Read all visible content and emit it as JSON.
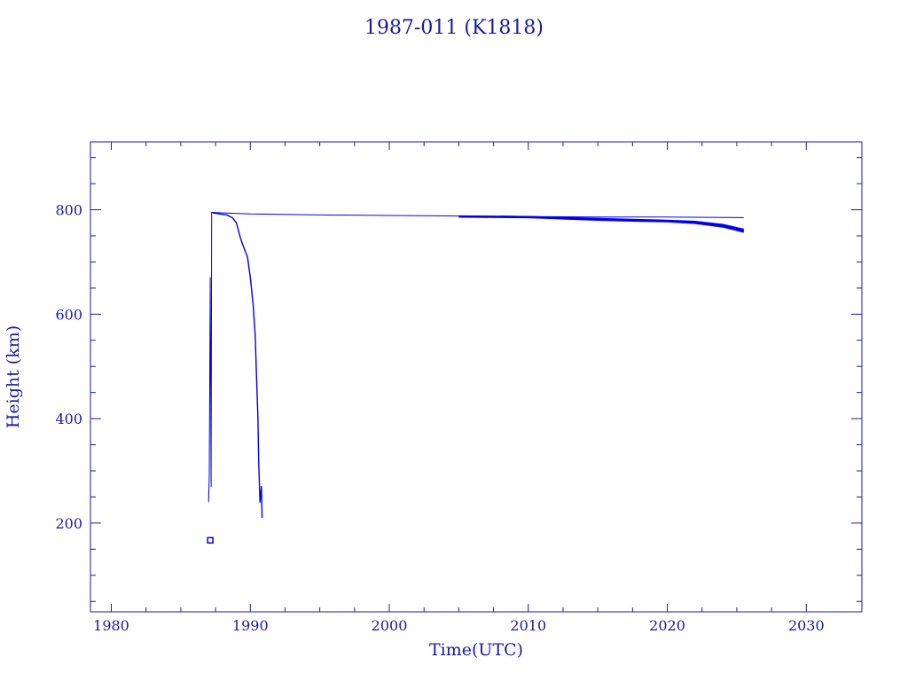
{
  "chart_data": {
    "type": "line",
    "title": "1987-011 (K1818)",
    "xlabel": "Time(UTC)",
    "ylabel": "Height (km)",
    "xlim": [
      1978.5,
      2034
    ],
    "ylim": [
      30,
      930
    ],
    "x_ticks": [
      1980,
      1990,
      2000,
      2010,
      2020,
      2030
    ],
    "y_ticks": [
      200,
      400,
      600,
      800
    ],
    "x_tick_labels": [
      "1980",
      "1990",
      "2000",
      "2010",
      "2020",
      "2030"
    ],
    "y_tick_labels": [
      "200",
      "400",
      "600",
      "800"
    ],
    "grid": false,
    "colors": {
      "axis": "#1a1aa0",
      "line": "#0000ee"
    },
    "series": [
      {
        "x": [
          1987.0,
          1987.05,
          1987.12,
          1987.18,
          1987.22,
          1987.3,
          1988.0,
          1990.0,
          1995.0,
          2000.0,
          2005.0,
          2010.0,
          2015.0,
          2020.0,
          2025.5
        ],
        "y": [
          240,
          290,
          670,
          270,
          795,
          795,
          794,
          792,
          790,
          789,
          788,
          787,
          786,
          786,
          785
        ]
      },
      {
        "x": [
          1987.3,
          1987.8,
          1988.3,
          1988.7,
          1989.0,
          1989.3,
          1989.5,
          1989.8,
          1990.0,
          1990.2,
          1990.35,
          1990.45,
          1990.55,
          1990.6,
          1990.7,
          1990.8,
          1990.85
        ],
        "y": [
          794,
          792,
          790,
          785,
          775,
          745,
          730,
          710,
          670,
          620,
          560,
          480,
          400,
          320,
          240,
          270,
          210
        ]
      },
      {
        "x": [
          2005.0,
          2010.0,
          2012.0,
          2015.0,
          2018.0,
          2020.0,
          2022.0,
          2024.0,
          2025.5
        ],
        "y": [
          787,
          786,
          784,
          781,
          779,
          778,
          775,
          768,
          758
        ]
      },
      {
        "x": [
          2008.0,
          2012.0,
          2016.0,
          2020.0,
          2022.0,
          2024.0,
          2025.5
        ],
        "y": [
          787,
          785,
          782,
          779,
          777,
          771,
          762
        ]
      },
      {
        "x": [
          1986.8,
          1987.2
        ],
        "y": [
          167,
          167
        ]
      }
    ]
  }
}
